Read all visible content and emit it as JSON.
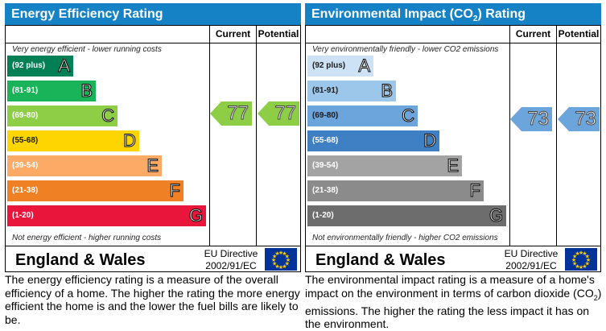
{
  "energy": {
    "title": "Energy Efficiency Rating",
    "col_current": "Current",
    "col_potential": "Potential",
    "top_note": "Very energy efficient - lower running costs",
    "bottom_note": "Not energy efficient - higher running costs",
    "bands": [
      {
        "range": "(92 plus)",
        "letter": "A",
        "color": "#008054"
      },
      {
        "range": "(81-91)",
        "letter": "B",
        "color": "#19b459"
      },
      {
        "range": "(69-80)",
        "letter": "C",
        "color": "#8dce46"
      },
      {
        "range": "(55-68)",
        "letter": "D",
        "color": "#ffd500"
      },
      {
        "range": "(39-54)",
        "letter": "E",
        "color": "#fcaa65"
      },
      {
        "range": "(21-38)",
        "letter": "F",
        "color": "#ef8023"
      },
      {
        "range": "(1-20)",
        "letter": "G",
        "color": "#e9153b"
      }
    ],
    "current": "77",
    "potential": "77",
    "arrow_color": "#8dce46",
    "region": "England & Wales",
    "directive_line1": "EU Directive",
    "directive_line2": "2002/91/EC",
    "description": "The energy efficiency rating is a measure of the overall efficiency of a home. The higher the rating the more energy efficient the home is and the lower the fuel bills are likely to be."
  },
  "environment": {
    "title_prefix": "Environmental Impact (CO",
    "title_sub": "2",
    "title_suffix": ") Rating",
    "col_current": "Current",
    "col_potential": "Potential",
    "top_note": "Very environmentally friendly - lower CO2 emissions",
    "bottom_note": "Not environmentally friendly - higher CO2 emissions",
    "bands": [
      {
        "range": "(92 plus)",
        "letter": "A",
        "color": "#cde3f5"
      },
      {
        "range": "(81-91)",
        "letter": "B",
        "color": "#9cc7ea"
      },
      {
        "range": "(69-80)",
        "letter": "C",
        "color": "#6ca4dc"
      },
      {
        "range": "(55-68)",
        "letter": "D",
        "color": "#3f7fc4"
      },
      {
        "range": "(39-54)",
        "letter": "E",
        "color": "#a3a3a3"
      },
      {
        "range": "(21-38)",
        "letter": "F",
        "color": "#8b8b8b"
      },
      {
        "range": "(1-20)",
        "letter": "G",
        "color": "#6d6d6d"
      }
    ],
    "current": "73",
    "potential": "73",
    "arrow_color": "#6ca4dc",
    "region": "England & Wales",
    "directive_line1": "EU Directive",
    "directive_line2": "2002/91/EC",
    "description_part1": "The environmental impact rating is a measure of a home's impact on the environment in terms of carbon dioxide (CO",
    "description_sub": "2",
    "description_part2": ") emissions. The higher the rating the less impact it has on the environment."
  }
}
